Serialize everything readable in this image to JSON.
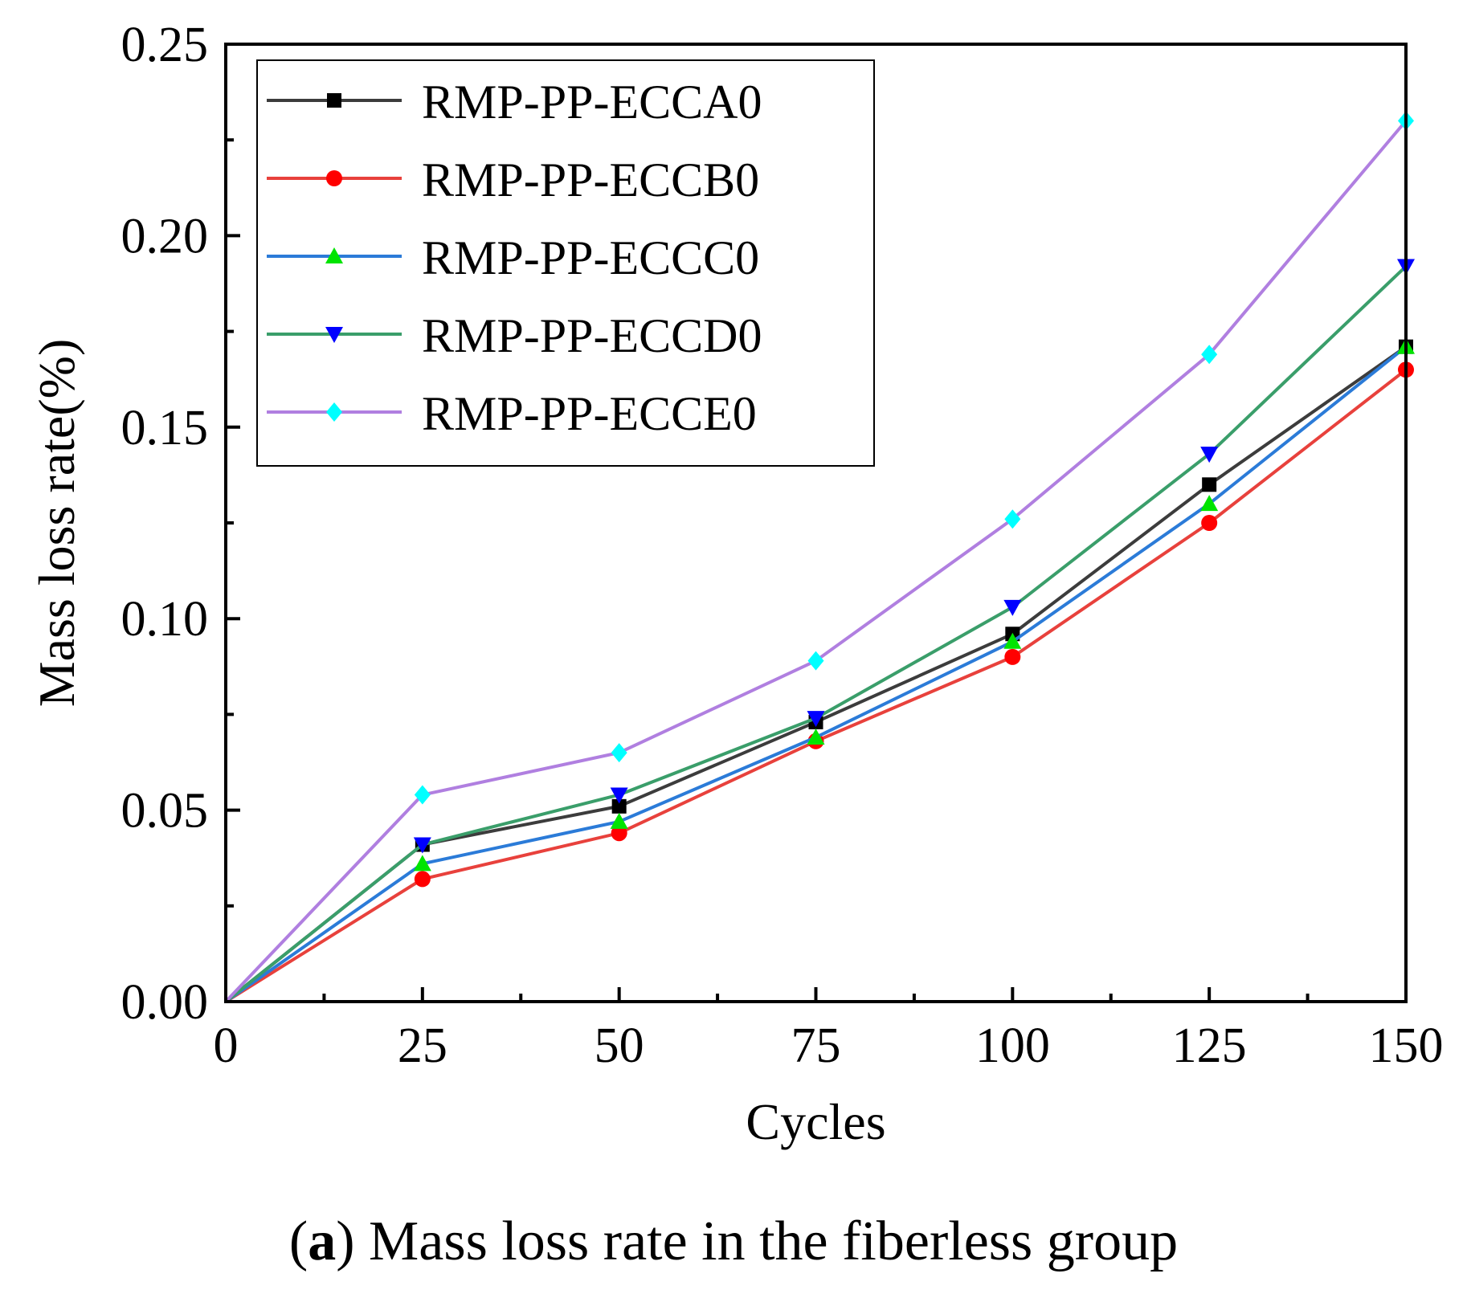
{
  "chart_data": {
    "type": "line",
    "xlabel": "Cycles",
    "ylabel": "Mass loss rate(%)",
    "xlim": [
      0,
      150
    ],
    "ylim": [
      0,
      0.25
    ],
    "x": [
      0,
      25,
      50,
      75,
      100,
      125,
      150
    ],
    "xticks": [
      "0",
      "25",
      "50",
      "75",
      "100",
      "125",
      "150"
    ],
    "yticks": [
      "0.00",
      "0.05",
      "0.10",
      "0.15",
      "0.20",
      "0.25"
    ],
    "legend_position": "top-left",
    "series": [
      {
        "name": "RMP-PP-ECCA0",
        "color": "#3c3c3c",
        "marker": "square",
        "marker_color": "#000000",
        "values": [
          0.0,
          0.041,
          0.051,
          0.073,
          0.096,
          0.135,
          0.171
        ]
      },
      {
        "name": "RMP-PP-ECCB0",
        "color": "#e8413c",
        "marker": "circle",
        "marker_color": "#ff0000",
        "values": [
          0.0,
          0.032,
          0.044,
          0.068,
          0.09,
          0.125,
          0.165
        ]
      },
      {
        "name": "RMP-PP-ECCC0",
        "color": "#2b7bd8",
        "marker": "triangle-up",
        "marker_color": "#00e400",
        "values": [
          0.0,
          0.036,
          0.047,
          0.069,
          0.094,
          0.13,
          0.171
        ]
      },
      {
        "name": "RMP-PP-ECCD0",
        "color": "#3a9e6a",
        "marker": "triangle-down",
        "marker_color": "#0000ff",
        "values": [
          0.0,
          0.041,
          0.054,
          0.074,
          0.103,
          0.143,
          0.192
        ]
      },
      {
        "name": "RMP-PP-ECCE0",
        "color": "#b07fe0",
        "marker": "diamond",
        "marker_color": "#00ffff",
        "values": [
          0.0,
          0.054,
          0.065,
          0.089,
          0.126,
          0.169,
          0.23
        ]
      }
    ]
  },
  "caption": {
    "open": "(",
    "bold": "a",
    "rest": ") Mass loss rate in the fiberless group"
  }
}
